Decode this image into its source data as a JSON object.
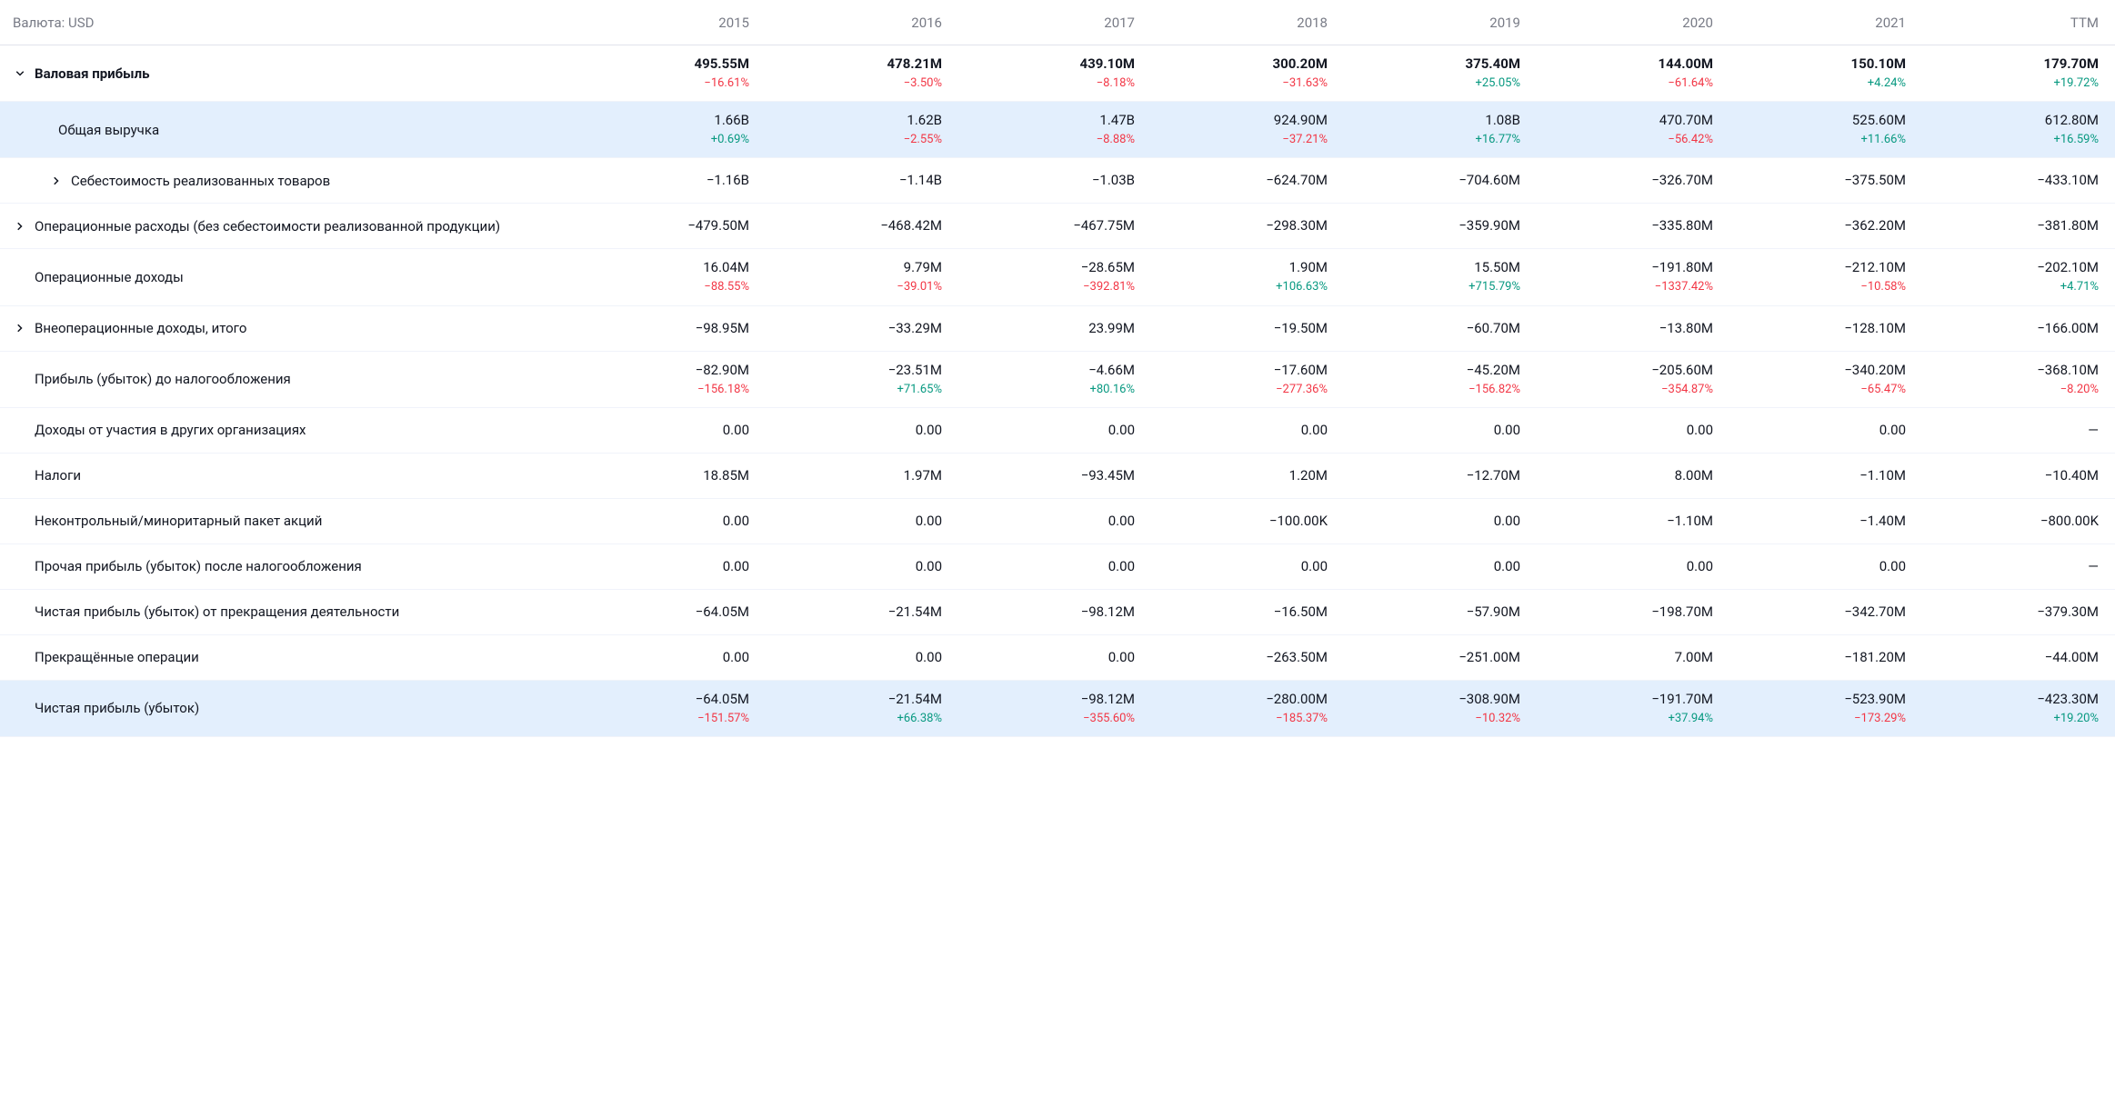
{
  "header": {
    "currency_label": "Валюта: USD",
    "columns": [
      "2015",
      "2016",
      "2017",
      "2018",
      "2019",
      "2020",
      "2021",
      "TTM"
    ]
  },
  "colors": {
    "positive": "#089981",
    "negative": "#f23645",
    "text": "#131722",
    "muted": "#787b86",
    "highlight": "#e3effd",
    "border": "#f0f3fa"
  },
  "rows": [
    {
      "id": "gross-profit",
      "label": "Валовая прибыль",
      "bold": true,
      "expand": "down",
      "indent": 0,
      "cells": [
        {
          "val": "495.55M",
          "chg": "−16.61%",
          "sign": "neg"
        },
        {
          "val": "478.21M",
          "chg": "−3.50%",
          "sign": "neg"
        },
        {
          "val": "439.10M",
          "chg": "−8.18%",
          "sign": "neg"
        },
        {
          "val": "300.20M",
          "chg": "−31.63%",
          "sign": "neg"
        },
        {
          "val": "375.40M",
          "chg": "+25.05%",
          "sign": "pos"
        },
        {
          "val": "144.00M",
          "chg": "−61.64%",
          "sign": "neg"
        },
        {
          "val": "150.10M",
          "chg": "+4.24%",
          "sign": "pos"
        },
        {
          "val": "179.70M",
          "chg": "+19.72%",
          "sign": "pos"
        }
      ]
    },
    {
      "id": "total-revenue",
      "label": "Общая выручка",
      "highlight": true,
      "indent": 1,
      "cells": [
        {
          "val": "1.66B",
          "chg": "+0.69%",
          "sign": "pos"
        },
        {
          "val": "1.62B",
          "chg": "−2.55%",
          "sign": "neg"
        },
        {
          "val": "1.47B",
          "chg": "−8.88%",
          "sign": "neg"
        },
        {
          "val": "924.90M",
          "chg": "−37.21%",
          "sign": "neg"
        },
        {
          "val": "1.08B",
          "chg": "+16.77%",
          "sign": "pos"
        },
        {
          "val": "470.70M",
          "chg": "−56.42%",
          "sign": "neg"
        },
        {
          "val": "525.60M",
          "chg": "+11.66%",
          "sign": "pos"
        },
        {
          "val": "612.80M",
          "chg": "+16.59%",
          "sign": "pos"
        }
      ]
    },
    {
      "id": "cogs",
      "label": "Себестоимость реализованных товаров",
      "expand": "right",
      "indent": 2,
      "cells": [
        {
          "val": "−1.16B"
        },
        {
          "val": "−1.14B"
        },
        {
          "val": "−1.03B"
        },
        {
          "val": "−624.70M"
        },
        {
          "val": "−704.60M"
        },
        {
          "val": "−326.70M"
        },
        {
          "val": "−375.50M"
        },
        {
          "val": "−433.10M"
        }
      ]
    },
    {
      "id": "opex",
      "label": "Операционные расходы (без себестоимости реализованной продукции)",
      "expand": "right",
      "indent": 0,
      "cells": [
        {
          "val": "−479.50M"
        },
        {
          "val": "−468.42M"
        },
        {
          "val": "−467.75M"
        },
        {
          "val": "−298.30M"
        },
        {
          "val": "−359.90M"
        },
        {
          "val": "−335.80M"
        },
        {
          "val": "−362.20M"
        },
        {
          "val": "−381.80M"
        }
      ]
    },
    {
      "id": "operating-income",
      "label": "Операционные доходы",
      "indent": 0,
      "cells": [
        {
          "val": "16.04M",
          "chg": "−88.55%",
          "sign": "neg"
        },
        {
          "val": "9.79M",
          "chg": "−39.01%",
          "sign": "neg"
        },
        {
          "val": "−28.65M",
          "chg": "−392.81%",
          "sign": "neg"
        },
        {
          "val": "1.90M",
          "chg": "+106.63%",
          "sign": "pos"
        },
        {
          "val": "15.50M",
          "chg": "+715.79%",
          "sign": "pos"
        },
        {
          "val": "−191.80M",
          "chg": "−1337.42%",
          "sign": "neg"
        },
        {
          "val": "−212.10M",
          "chg": "−10.58%",
          "sign": "neg"
        },
        {
          "val": "−202.10M",
          "chg": "+4.71%",
          "sign": "pos"
        }
      ]
    },
    {
      "id": "non-operating-income",
      "label": "Внеоперационные доходы, итого",
      "expand": "right",
      "indent": 0,
      "cells": [
        {
          "val": "−98.95M"
        },
        {
          "val": "−33.29M"
        },
        {
          "val": "23.99M"
        },
        {
          "val": "−19.50M"
        },
        {
          "val": "−60.70M"
        },
        {
          "val": "−13.80M"
        },
        {
          "val": "−128.10M"
        },
        {
          "val": "−166.00M"
        }
      ]
    },
    {
      "id": "pretax-income",
      "label": "Прибыль (убыток) до налогообложения",
      "indent": 0,
      "cells": [
        {
          "val": "−82.90M",
          "chg": "−156.18%",
          "sign": "neg"
        },
        {
          "val": "−23.51M",
          "chg": "+71.65%",
          "sign": "pos"
        },
        {
          "val": "−4.66M",
          "chg": "+80.16%",
          "sign": "pos"
        },
        {
          "val": "−17.60M",
          "chg": "−277.36%",
          "sign": "neg"
        },
        {
          "val": "−45.20M",
          "chg": "−156.82%",
          "sign": "neg"
        },
        {
          "val": "−205.60M",
          "chg": "−354.87%",
          "sign": "neg"
        },
        {
          "val": "−340.20M",
          "chg": "−65.47%",
          "sign": "neg"
        },
        {
          "val": "−368.10M",
          "chg": "−8.20%",
          "sign": "neg"
        }
      ]
    },
    {
      "id": "equity-earnings",
      "label": "Доходы от участия в других организациях",
      "indent": 0,
      "cells": [
        {
          "val": "0.00"
        },
        {
          "val": "0.00"
        },
        {
          "val": "0.00"
        },
        {
          "val": "0.00"
        },
        {
          "val": "0.00"
        },
        {
          "val": "0.00"
        },
        {
          "val": "0.00"
        },
        {
          "val": "—"
        }
      ]
    },
    {
      "id": "taxes",
      "label": "Налоги",
      "indent": 0,
      "cells": [
        {
          "val": "18.85M"
        },
        {
          "val": "1.97M"
        },
        {
          "val": "−93.45M"
        },
        {
          "val": "1.20M"
        },
        {
          "val": "−12.70M"
        },
        {
          "val": "8.00M"
        },
        {
          "val": "−1.10M"
        },
        {
          "val": "−10.40M"
        }
      ]
    },
    {
      "id": "minority-interest",
      "label": "Неконтрольный/миноритарный пакет акций",
      "indent": 0,
      "cells": [
        {
          "val": "0.00"
        },
        {
          "val": "0.00"
        },
        {
          "val": "0.00"
        },
        {
          "val": "−100.00K"
        },
        {
          "val": "0.00"
        },
        {
          "val": "−1.10M"
        },
        {
          "val": "−1.40M"
        },
        {
          "val": "−800.00K"
        }
      ]
    },
    {
      "id": "after-tax-other",
      "label": "Прочая прибыль (убыток) после налогообложения",
      "indent": 0,
      "cells": [
        {
          "val": "0.00"
        },
        {
          "val": "0.00"
        },
        {
          "val": "0.00"
        },
        {
          "val": "0.00"
        },
        {
          "val": "0.00"
        },
        {
          "val": "0.00"
        },
        {
          "val": "0.00"
        },
        {
          "val": "—"
        }
      ]
    },
    {
      "id": "net-income-discontinued",
      "label": "Чистая прибыль (убыток) от прекращения деятельности",
      "indent": 0,
      "cells": [
        {
          "val": "−64.05M"
        },
        {
          "val": "−21.54M"
        },
        {
          "val": "−98.12M"
        },
        {
          "val": "−16.50M"
        },
        {
          "val": "−57.90M"
        },
        {
          "val": "−198.70M"
        },
        {
          "val": "−342.70M"
        },
        {
          "val": "−379.30M"
        }
      ]
    },
    {
      "id": "discontinued-ops",
      "label": "Прекращённые операции",
      "indent": 0,
      "cells": [
        {
          "val": "0.00"
        },
        {
          "val": "0.00"
        },
        {
          "val": "0.00"
        },
        {
          "val": "−263.50M"
        },
        {
          "val": "−251.00M"
        },
        {
          "val": "7.00M"
        },
        {
          "val": "−181.20M"
        },
        {
          "val": "−44.00M"
        }
      ]
    },
    {
      "id": "net-income",
      "label": "Чистая прибыль (убыток)",
      "highlight": true,
      "indent": 0,
      "cells": [
        {
          "val": "−64.05M",
          "chg": "−151.57%",
          "sign": "neg"
        },
        {
          "val": "−21.54M",
          "chg": "+66.38%",
          "sign": "pos"
        },
        {
          "val": "−98.12M",
          "chg": "−355.60%",
          "sign": "neg"
        },
        {
          "val": "−280.00M",
          "chg": "−185.37%",
          "sign": "neg"
        },
        {
          "val": "−308.90M",
          "chg": "−10.32%",
          "sign": "neg"
        },
        {
          "val": "−191.70M",
          "chg": "+37.94%",
          "sign": "pos"
        },
        {
          "val": "−523.90M",
          "chg": "−173.29%",
          "sign": "neg"
        },
        {
          "val": "−423.30M",
          "chg": "+19.20%",
          "sign": "pos"
        }
      ]
    }
  ]
}
